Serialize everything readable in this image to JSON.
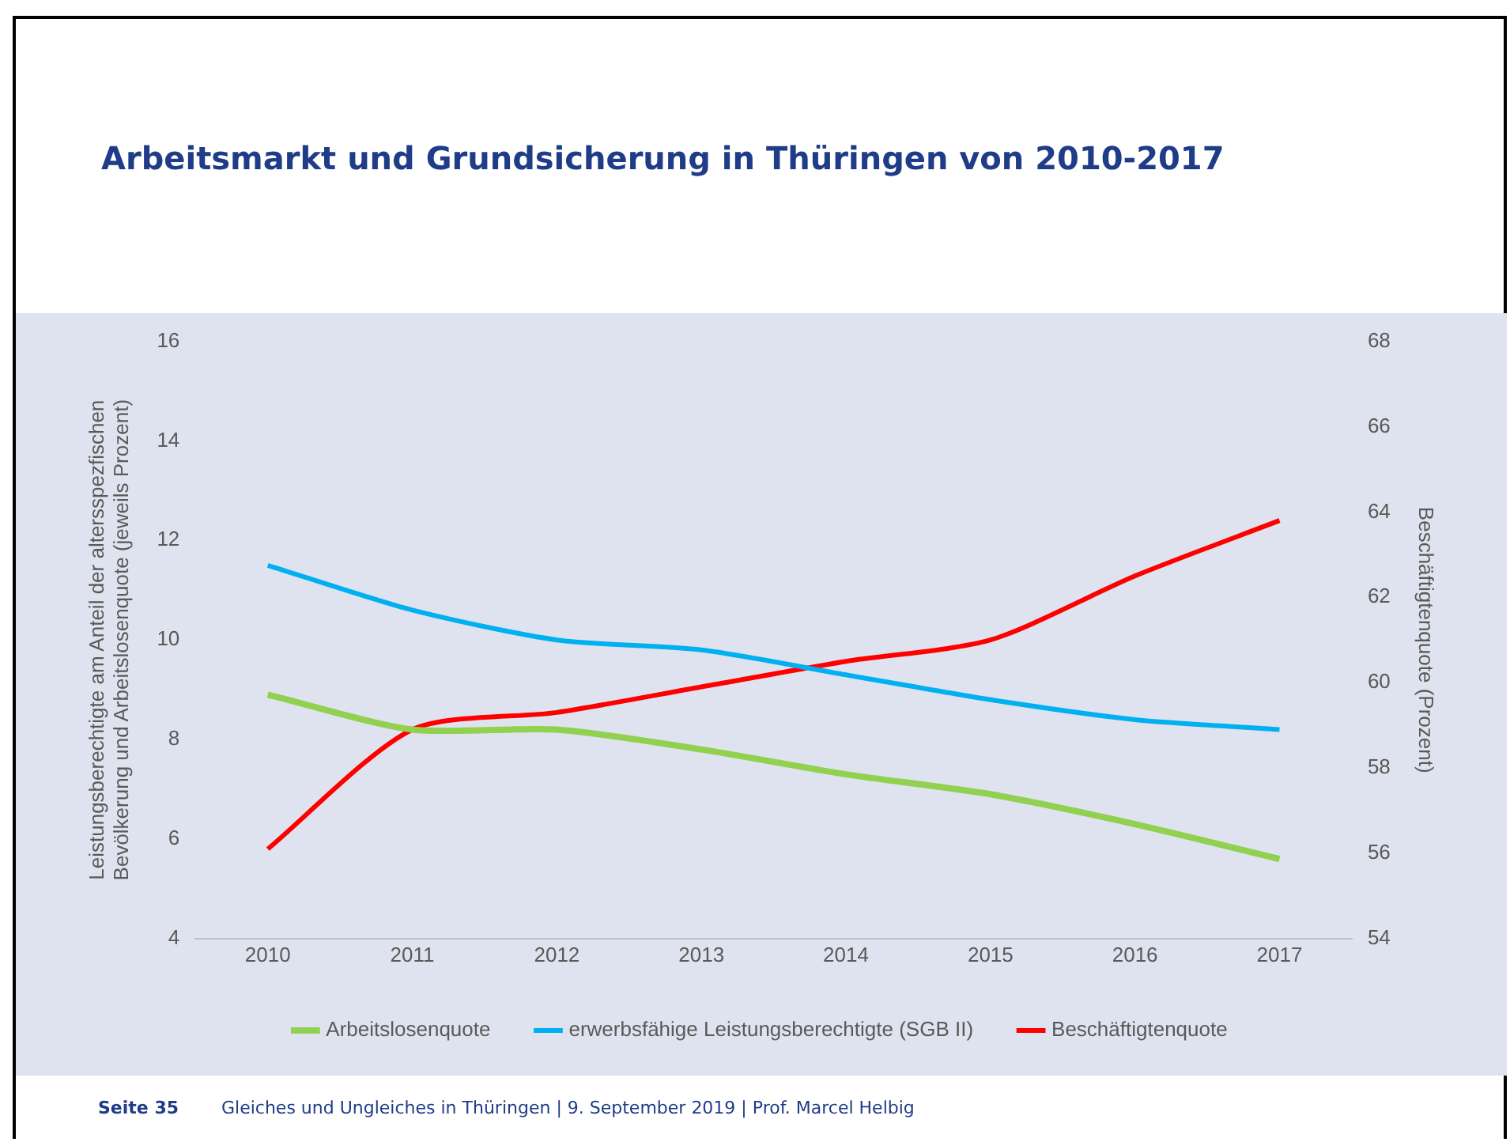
{
  "chart_data": {
    "type": "line",
    "title": "Arbeitsmarkt und Grundsicherung in Thüringen von 2010-2017",
    "categories": [
      "2010",
      "2011",
      "2012",
      "2013",
      "2014",
      "2015",
      "2016",
      "2017"
    ],
    "series": [
      {
        "name": "Arbeitslosenquote",
        "color": "#92d050",
        "values": [
          8.9,
          8.2,
          8.2,
          7.8,
          7.3,
          6.9,
          6.3,
          5.6
        ]
      },
      {
        "name": "erwerbsfähige Leistungsberechtigte (SGB II)",
        "color": "#00b0f0",
        "values": [
          11.5,
          10.6,
          10.0,
          9.8,
          9.3,
          8.8,
          8.4,
          8.2
        ]
      },
      {
        "name": "Beschäftigtenquote",
        "color": "#ff0000",
        "axis": "y2",
        "values": [
          56.1,
          58.9,
          59.3,
          59.9,
          60.5,
          61.0,
          62.5,
          63.8
        ]
      }
    ],
    "ylabel": "Leistungsberechtigte am Anteil der altersspezfischen Bevölkerung und Arbeitslosenquote (jeweils Prozent)",
    "y2label": "Beschäftigtenquote (Prozent)",
    "ylim": [
      4,
      16
    ],
    "yticks": [
      4,
      6,
      8,
      10,
      12,
      14,
      16
    ],
    "y2lim": [
      54,
      68
    ],
    "y2ticks": [
      54,
      56,
      58,
      60,
      62,
      64,
      66,
      68
    ],
    "grid": false,
    "legend": "bottom",
    "marker": "none",
    "line_style": "solid",
    "annotations": [
      "Seite 35",
      "Gleiches und Ungleiches in Thüringen | 9. September 2019 | Prof. Marcel Helbig"
    ]
  }
}
